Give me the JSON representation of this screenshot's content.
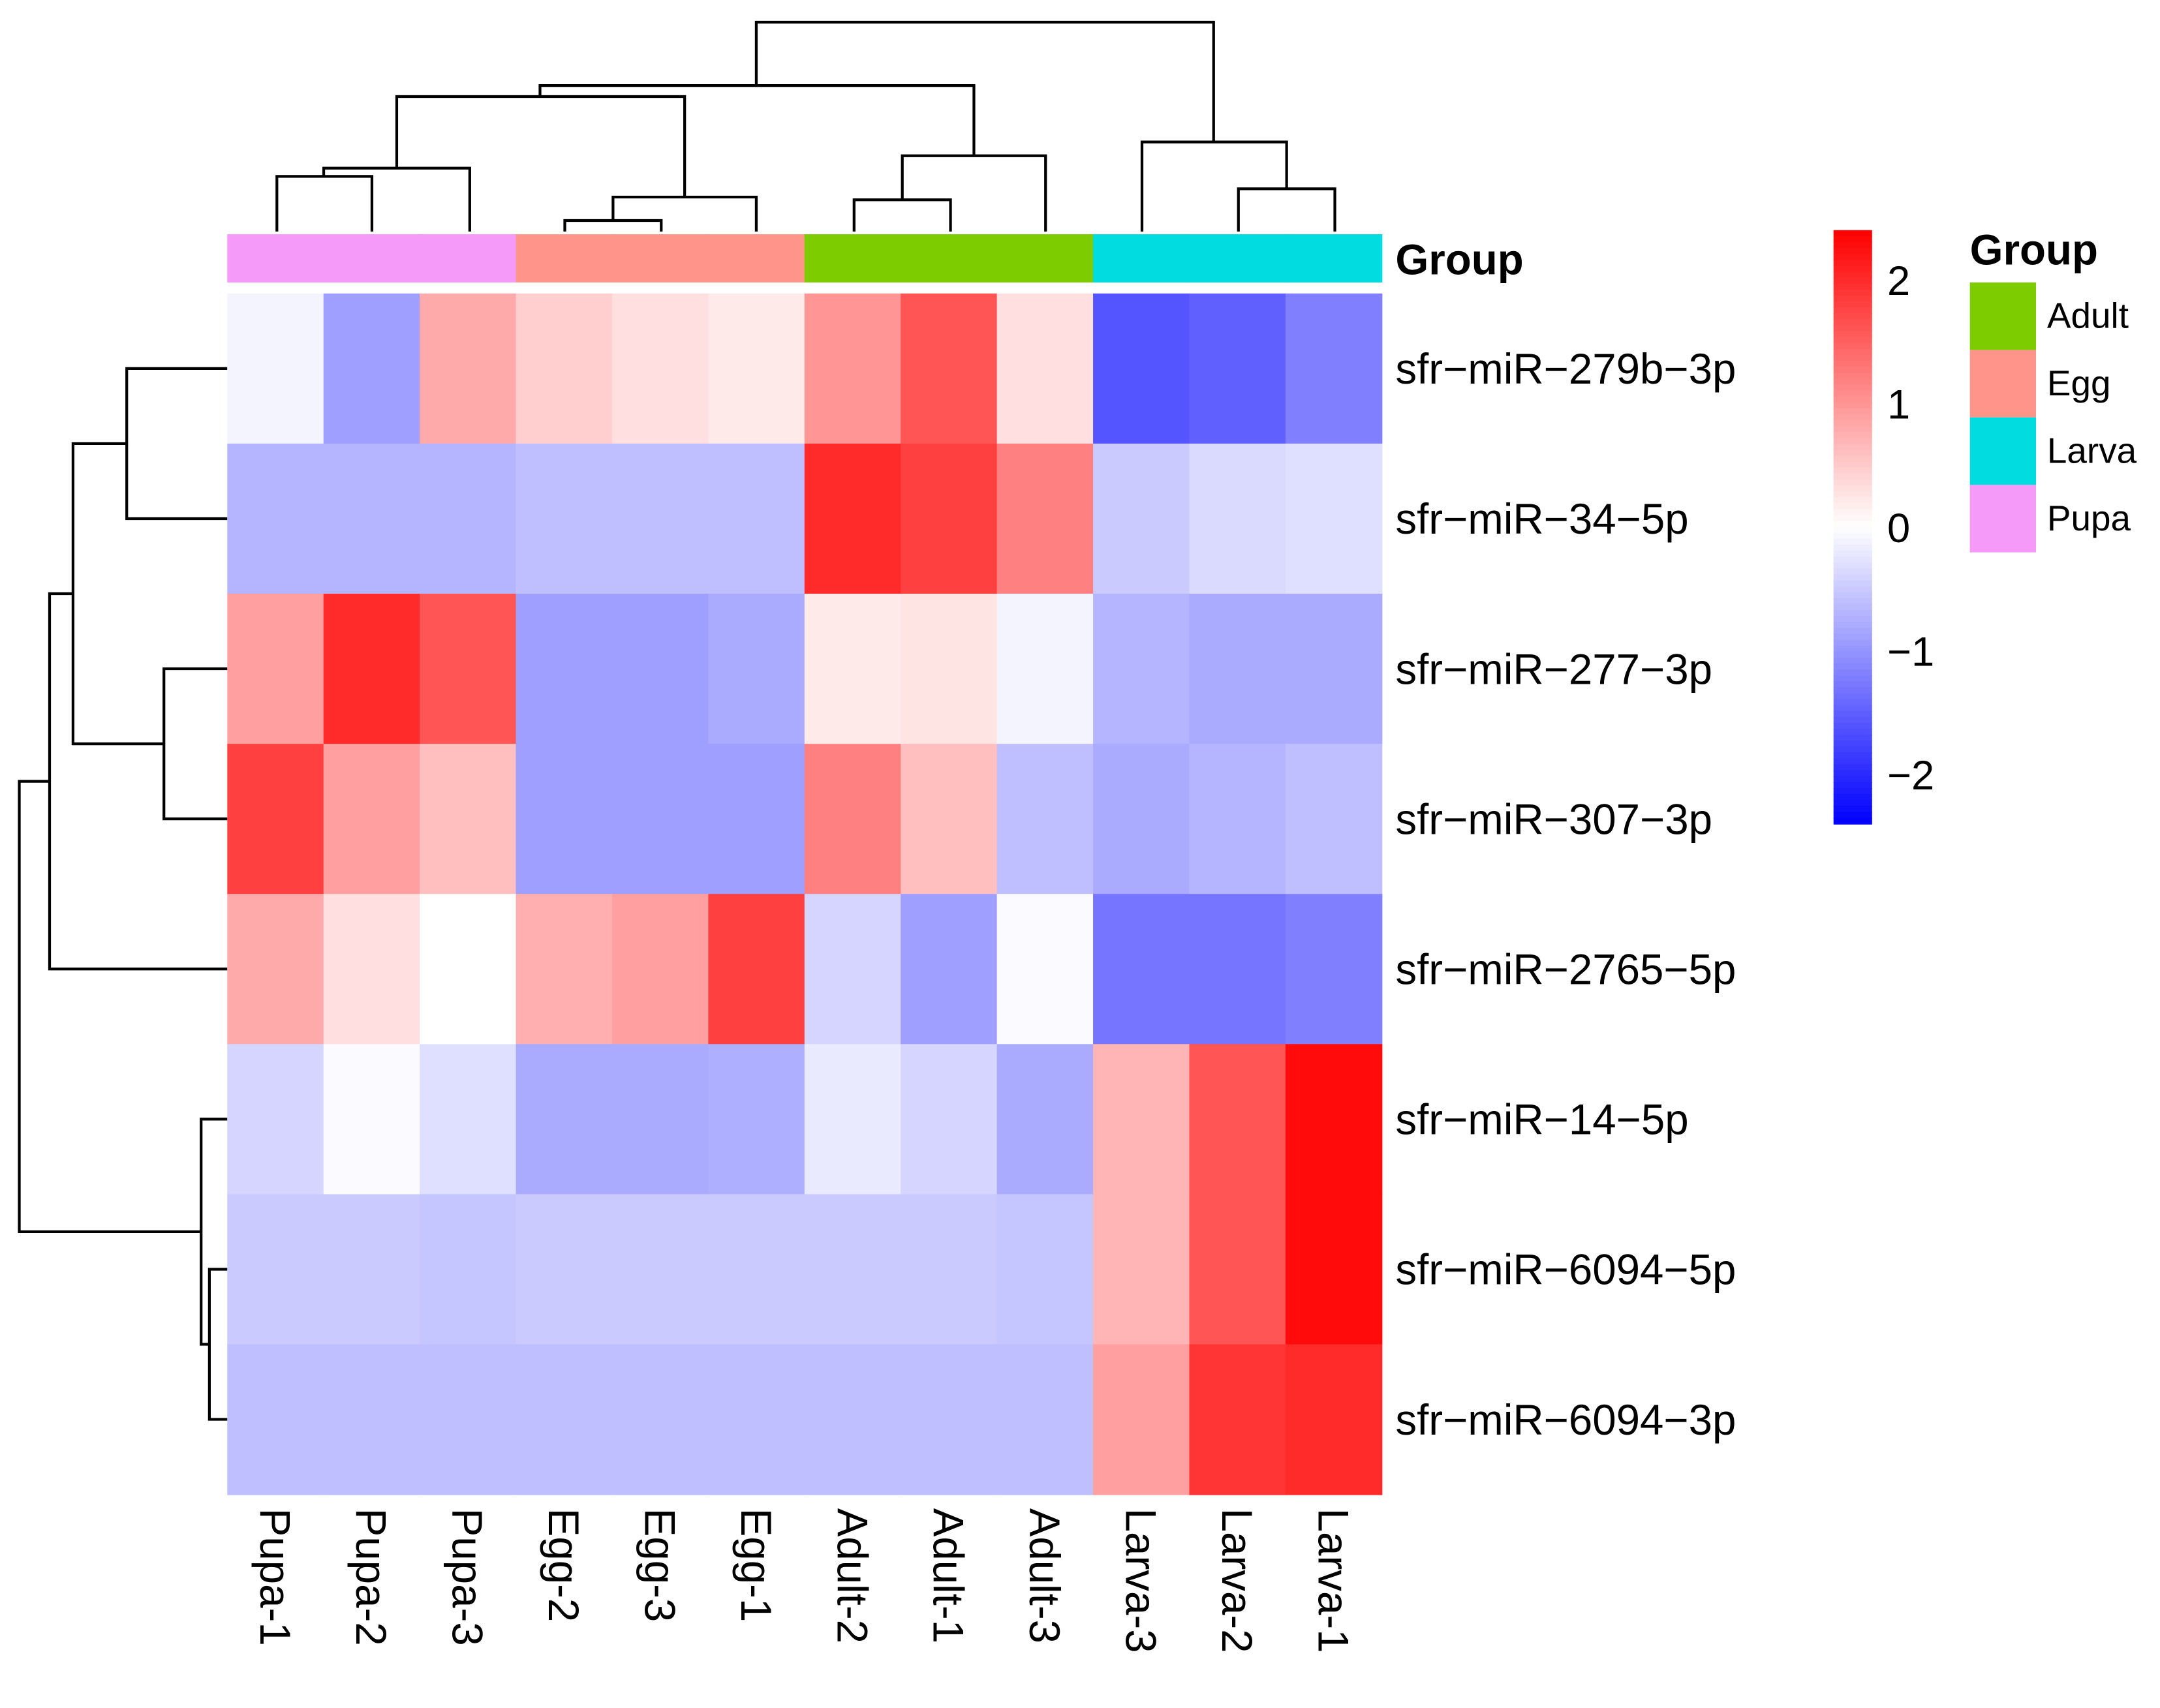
{
  "chart_data": {
    "type": "heatmap",
    "title": "",
    "columns": [
      "Pupa-1",
      "Pupa-2",
      "Pupa-3",
      "Egg-2",
      "Egg-3",
      "Egg-1",
      "Adult-2",
      "Adult-1",
      "Adult-3",
      "Larva-3",
      "Larva-2",
      "Larva-1"
    ],
    "column_groups": [
      "Pupa",
      "Pupa",
      "Pupa",
      "Egg",
      "Egg",
      "Egg",
      "Adult",
      "Adult",
      "Adult",
      "Larva",
      "Larva",
      "Larva"
    ],
    "rows": [
      "sfr-miR-279b-3p",
      "sfr-miR-34-5p",
      "sfr-miR-277-3p",
      "sfr-miR-307-3p",
      "sfr-miR-2765-5p",
      "sfr-miR-14-5p",
      "sfr-miR-6094-5p",
      "sfr-miR-6094-3p"
    ],
    "values": [
      [
        -0.1,
        -0.9,
        0.8,
        0.45,
        0.3,
        0.2,
        1.0,
        1.6,
        0.3,
        -1.6,
        -1.5,
        -1.2
      ],
      [
        -0.7,
        -0.7,
        -0.7,
        -0.6,
        -0.6,
        -0.6,
        2.0,
        1.8,
        1.2,
        -0.5,
        -0.35,
        -0.3
      ],
      [
        0.9,
        2.0,
        1.6,
        -0.9,
        -0.9,
        -0.8,
        0.2,
        0.25,
        -0.1,
        -0.7,
        -0.8,
        -0.8
      ],
      [
        1.8,
        0.9,
        0.6,
        -0.9,
        -0.9,
        -0.9,
        1.2,
        0.6,
        -0.6,
        -0.8,
        -0.7,
        -0.6
      ],
      [
        0.8,
        0.3,
        0.0,
        0.75,
        0.9,
        1.8,
        -0.4,
        -0.9,
        -0.05,
        -1.3,
        -1.3,
        -1.2
      ],
      [
        -0.4,
        -0.05,
        -0.3,
        -0.8,
        -0.8,
        -0.75,
        -0.2,
        -0.4,
        -0.8,
        0.7,
        1.6,
        2.3
      ],
      [
        -0.5,
        -0.5,
        -0.55,
        -0.5,
        -0.5,
        -0.5,
        -0.5,
        -0.5,
        -0.55,
        0.7,
        1.6,
        2.3
      ],
      [
        -0.6,
        -0.6,
        -0.6,
        -0.6,
        -0.6,
        -0.6,
        -0.6,
        -0.6,
        -0.6,
        0.9,
        1.9,
        2.0
      ]
    ],
    "color_scale": {
      "min": -2.4,
      "max": 2.4,
      "low": "#0000FF",
      "mid": "#FFFFFF",
      "high": "#FF0000",
      "ticks": [
        2,
        1,
        0,
        -1,
        -2
      ],
      "tick_labels": [
        "2",
        "1",
        "0",
        "−1",
        "−2"
      ]
    },
    "annotation": {
      "title": "Group",
      "legend_title": "Group",
      "levels": [
        "Adult",
        "Egg",
        "Larva",
        "Pupa"
      ],
      "colors": {
        "Adult": "#7CCC00",
        "Egg": "#FF958A",
        "Larva": "#00DCE0",
        "Pupa": "#F59AF8"
      }
    },
    "clustering": {
      "rows": true,
      "columns": true
    }
  }
}
